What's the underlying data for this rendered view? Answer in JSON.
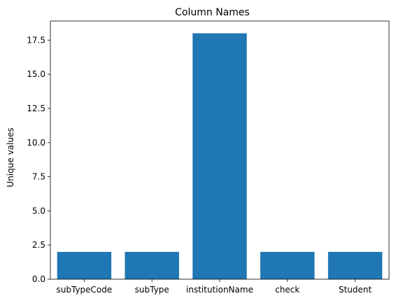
{
  "chart_data": {
    "type": "bar",
    "title": "Column Names",
    "xlabel": "",
    "ylabel": "Unique values",
    "categories": [
      "subTypeCode",
      "subType",
      "institutionName",
      "check",
      "Student"
    ],
    "values": [
      2,
      2,
      18,
      2,
      2
    ],
    "ylim": [
      0,
      18.9
    ],
    "yticks": [
      0.0,
      2.5,
      5.0,
      7.5,
      10.0,
      12.5,
      15.0,
      17.5
    ],
    "ytick_labels": [
      "0.0",
      "2.5",
      "5.0",
      "7.5",
      "10.0",
      "12.5",
      "15.0",
      "17.5"
    ],
    "bar_color": "#1f77b4",
    "grid": false,
    "legend": "none"
  }
}
